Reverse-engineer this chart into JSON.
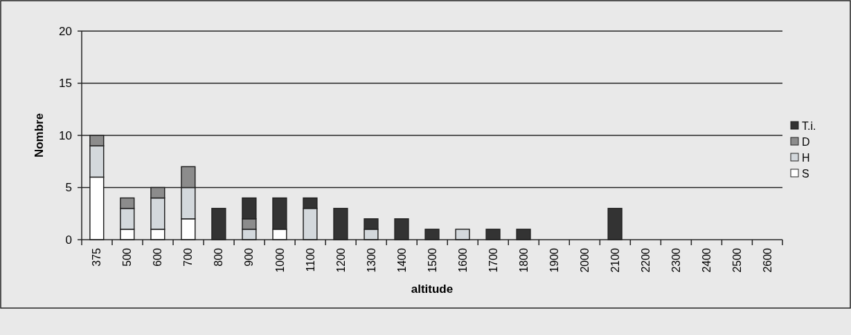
{
  "chart_data": {
    "type": "bar",
    "stacked": true,
    "xlabel": "altitude",
    "ylabel": "Nombre",
    "categories": [
      "375",
      "500",
      "600",
      "700",
      "800",
      "900",
      "1000",
      "1100",
      "1200",
      "1300",
      "1400",
      "1500",
      "1600",
      "1700",
      "1800",
      "1900",
      "2000",
      "2100",
      "2200",
      "2300",
      "2400",
      "2500",
      "2600"
    ],
    "series": [
      {
        "name": "S",
        "color": "#ffffff",
        "values": [
          6,
          1,
          1,
          2,
          0,
          0,
          1,
          0,
          0,
          0,
          0,
          0,
          0,
          0,
          0,
          0,
          0,
          0,
          0,
          0,
          0,
          0,
          0
        ]
      },
      {
        "name": "H",
        "color": "#d3d8dc",
        "values": [
          3,
          2,
          3,
          3,
          0,
          1,
          0,
          3,
          0,
          1,
          0,
          0,
          1,
          0,
          0,
          0,
          0,
          0,
          0,
          0,
          0,
          0,
          0
        ]
      },
      {
        "name": "D",
        "color": "#8c8c8c",
        "values": [
          1,
          1,
          1,
          2,
          0,
          1,
          0,
          0,
          0,
          0,
          0,
          0,
          0,
          0,
          0,
          0,
          0,
          0,
          0,
          0,
          0,
          0,
          0
        ]
      },
      {
        "name": "T.i.",
        "color": "#333333",
        "values": [
          0,
          0,
          0,
          0,
          3,
          2,
          3,
          1,
          3,
          1,
          2,
          1,
          0,
          1,
          1,
          0,
          0,
          3,
          0,
          0,
          0,
          0,
          0
        ]
      }
    ],
    "ylim": [
      0,
      20
    ],
    "yticks": [
      0,
      5,
      10,
      15,
      20
    ],
    "grid": "y",
    "legend": "right"
  }
}
